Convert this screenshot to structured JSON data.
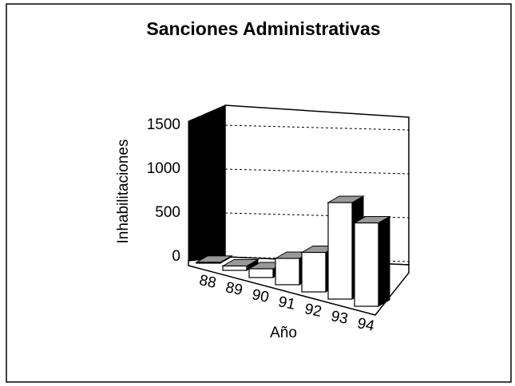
{
  "chart_data": {
    "type": "bar3d",
    "title": "Sanciones Administrativas",
    "x_label": "Año",
    "y_label": "Inhabilitaciones",
    "categories": [
      "88",
      "89",
      "90",
      "91",
      "92",
      "93",
      "94"
    ],
    "values": [
      10,
      50,
      100,
      300,
      450,
      1100,
      950
    ],
    "color": "#ffffff",
    "ylim": [
      0,
      1500
    ],
    "yticks": [
      0,
      500,
      1000,
      1500
    ],
    "grid": true
  }
}
